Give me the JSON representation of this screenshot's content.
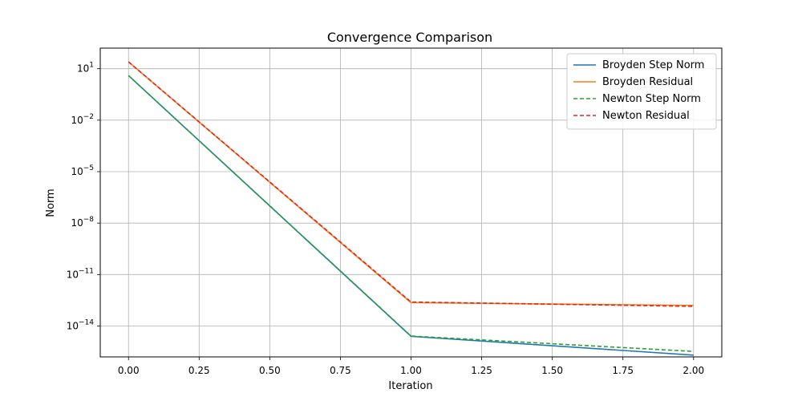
{
  "chart_data": {
    "type": "line",
    "title": "Convergence Comparison",
    "xlabel": "Iteration",
    "ylabel": "Norm",
    "xlim": [
      -0.1,
      2.1
    ],
    "ylim_log10": [
      -15.8,
      2.2
    ],
    "yscale": "log",
    "grid": true,
    "legend_position": "top-right",
    "x_ticks": [
      {
        "value": 0.0,
        "label": "0.00"
      },
      {
        "value": 0.25,
        "label": "0.25"
      },
      {
        "value": 0.5,
        "label": "0.50"
      },
      {
        "value": 0.75,
        "label": "0.75"
      },
      {
        "value": 1.0,
        "label": "1.00"
      },
      {
        "value": 1.25,
        "label": "1.25"
      },
      {
        "value": 1.5,
        "label": "1.50"
      },
      {
        "value": 1.75,
        "label": "1.75"
      },
      {
        "value": 2.0,
        "label": "2.00"
      }
    ],
    "y_ticks": [
      {
        "exp": 1,
        "base": "10",
        "sup": "1"
      },
      {
        "exp": -2,
        "base": "10",
        "sup": "−2"
      },
      {
        "exp": -5,
        "base": "10",
        "sup": "−5"
      },
      {
        "exp": -8,
        "base": "10",
        "sup": "−8"
      },
      {
        "exp": -11,
        "base": "10",
        "sup": "−11"
      },
      {
        "exp": -14,
        "base": "10",
        "sup": "−14"
      }
    ],
    "x": [
      0,
      1,
      2
    ],
    "series": [
      {
        "name": "Broyden Step Norm",
        "color": "#1f77b4",
        "dash": false,
        "values": [
          4.0,
          2.5e-15,
          2e-16
        ]
      },
      {
        "name": "Broyden Residual",
        "color": "#ff7f0e",
        "dash": false,
        "values": [
          25.0,
          2.3e-13,
          1.6e-13
        ]
      },
      {
        "name": "Newton Step Norm",
        "color": "#2ca02c",
        "dash": true,
        "values": [
          4.0,
          2.6e-15,
          3.3e-16
        ]
      },
      {
        "name": "Newton Residual",
        "color": "#d62728",
        "dash": true,
        "values": [
          25.0,
          2.5e-13,
          1.4e-13
        ]
      }
    ]
  }
}
